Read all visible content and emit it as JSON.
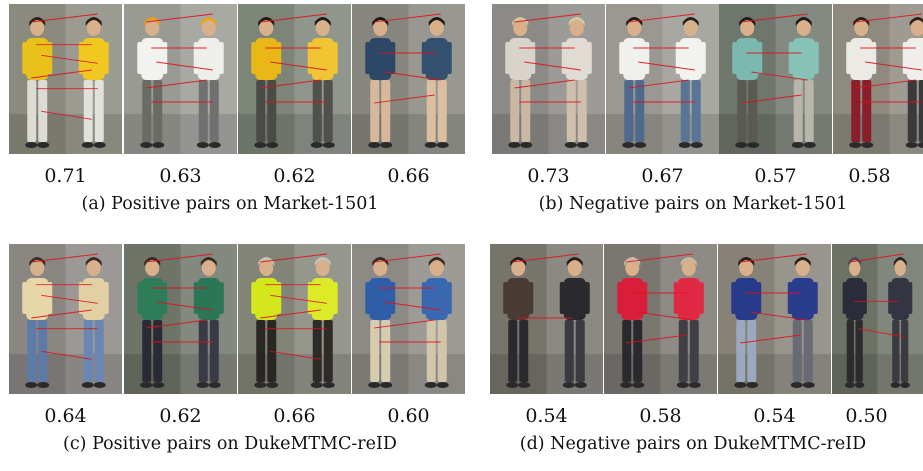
{
  "panels": [
    {
      "caption": "(a) Positive pairs on Market-1501",
      "pairs": [
        {
          "score": "0.71",
          "bg": "#8a8a7e",
          "left": {
            "shirt": "#e8c21a",
            "legs": "#dcdcd4",
            "hair": "#2b2118"
          },
          "right": {
            "shirt": "#f0c820",
            "legs": "#e2e2dc",
            "hair": "#2b2118"
          },
          "matches": 6
        },
        {
          "score": "0.63",
          "bg": "#9a9a94",
          "left": {
            "shirt": "#f2f2ee",
            "legs": "#6b6b66",
            "hair": "#e0a020"
          },
          "right": {
            "shirt": "#eeeeea",
            "legs": "#707070",
            "hair": "#e8a41c"
          },
          "matches": 5
        },
        {
          "score": "0.62",
          "bg": "#7d8478",
          "left": {
            "shirt": "#e9b818",
            "legs": "#4a4a46",
            "hair": "#1e1a16"
          },
          "right": {
            "shirt": "#f0c432",
            "legs": "#50504c",
            "hair": "#1e1a16"
          },
          "matches": 5
        },
        {
          "score": "0.66",
          "bg": "#86867e",
          "left": {
            "shirt": "#2d4766",
            "legs": "#d7b89a",
            "hair": "#1c1814"
          },
          "right": {
            "shirt": "#33506e",
            "legs": "#dcbfa0",
            "hair": "#1c1814"
          },
          "matches": 4
        }
      ]
    },
    {
      "caption": "(b) Negative pairs on Market-1501",
      "pairs": [
        {
          "score": "0.73",
          "bg": "#8c8a86",
          "left": {
            "shirt": "#d8d4cc",
            "legs": "#c8b8a4",
            "hair": "#d6c49a"
          },
          "right": {
            "shirt": "#e0dcd4",
            "legs": "#cfc0ac",
            "hair": "#d8c8a0"
          },
          "matches": 5
        },
        {
          "score": "0.67",
          "bg": "#9a9890",
          "left": {
            "shirt": "#f0f0ec",
            "legs": "#4f6a8c",
            "hair": "#1e1a16"
          },
          "right": {
            "shirt": "#f2f2ee",
            "legs": "#5a7594",
            "hair": "#24201a"
          },
          "matches": 5
        },
        {
          "score": "0.57",
          "bg": "#6f766c",
          "left": {
            "shirt": "#7ab8b0",
            "legs": "#5a5a52",
            "hair": "#1e1a16"
          },
          "right": {
            "shirt": "#86c2b6",
            "legs": "#b8b6aa",
            "hair": "#1e1a16"
          },
          "matches": 4
        },
        {
          "score": "0.58",
          "bg": "#8e8a80",
          "left": {
            "shirt": "#eceae4",
            "legs": "#8a1e2a",
            "hair": "#2a2018"
          },
          "right": {
            "shirt": "#f0eeea",
            "legs": "#3a3a3a",
            "hair": "#2a2018"
          },
          "matches": 5
        }
      ]
    },
    {
      "caption": "(c) Positive pairs on DukeMTMC-reID",
      "pairs": [
        {
          "score": "0.64",
          "bg": "#8a8682",
          "left": {
            "shirt": "#e6d6a8",
            "legs": "#5e7aa8",
            "hair": "#3a2e24"
          },
          "right": {
            "shirt": "#e2d0a2",
            "legs": "#6a86b2",
            "hair": "#3a2e24"
          },
          "matches": 6
        },
        {
          "score": "0.62",
          "bg": "#6e7468",
          "left": {
            "shirt": "#2e7d5a",
            "legs": "#2a2a34",
            "hair": "#3c2a1e"
          },
          "right": {
            "shirt": "#2a7656",
            "legs": "#3a3a46",
            "hair": "#3c2a1e"
          },
          "matches": 5
        },
        {
          "score": "0.66",
          "bg": "#828478",
          "left": {
            "shirt": "#d4e61c",
            "legs": "#2a2624",
            "hair": "#c8c2b4"
          },
          "right": {
            "shirt": "#dcea28",
            "legs": "#2e2a28",
            "hair": "#c8c2b4"
          },
          "matches": 6
        },
        {
          "score": "0.60",
          "bg": "#8c8a84",
          "left": {
            "shirt": "#2f5ea8",
            "legs": "#d8ccb0",
            "hair": "#3a2a20"
          },
          "right": {
            "shirt": "#3a68b0",
            "legs": "#d2c6aa",
            "hair": "#3a2a20"
          },
          "matches": 5
        }
      ]
    },
    {
      "caption": "(d) Negative pairs on DukeMTMC-reID",
      "pairs": [
        {
          "score": "0.54",
          "bg": "#77746c",
          "left": {
            "shirt": "#4a3a36",
            "legs": "#2a2a2e",
            "hair": "#2a1e18"
          },
          "right": {
            "shirt": "#2a2a2e",
            "legs": "#3a3a40",
            "hair": "#2a1e18"
          },
          "matches": 2
        },
        {
          "score": "0.58",
          "bg": "#7a7670",
          "left": {
            "shirt": "#d81e3a",
            "legs": "#2a2a2e",
            "hair": "#c8b8a4"
          },
          "right": {
            "shirt": "#e02a44",
            "legs": "#404044",
            "hair": "#c8b8a4"
          },
          "matches": 4
        },
        {
          "score": "0.54",
          "bg": "#868278",
          "left": {
            "shirt": "#283a8a",
            "legs": "#9aa8c0",
            "hair": "#2a2018"
          },
          "right": {
            "shirt": "#2a3c8e",
            "legs": "#6a6a72",
            "hair": "#2a2018"
          },
          "matches": 4
        },
        {
          "score": "0.50",
          "bg": "#6c7266",
          "left": {
            "shirt": "#2a2c3a",
            "legs": "#2c2c30",
            "hair": "#4a4a54"
          },
          "right": {
            "shirt": "#343442",
            "legs": "#3a3a40",
            "hair": "#2a2420"
          },
          "matches": 3
        }
      ]
    }
  ]
}
